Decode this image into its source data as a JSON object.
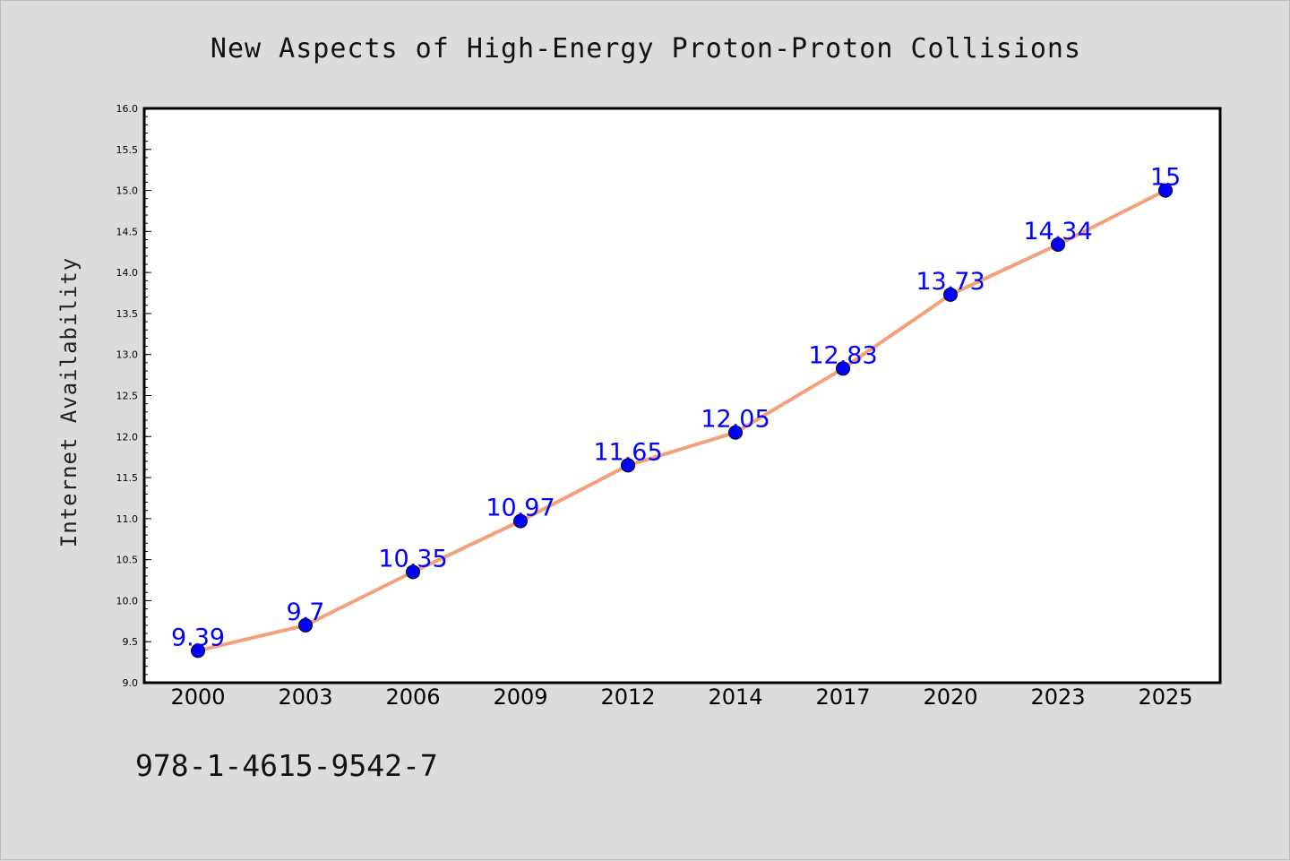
{
  "isbn": "978-1-4615-9542-7",
  "colors": {
    "background": "#dcdcdc",
    "plot_background": "#ffffff",
    "line": "#f4a07a",
    "marker": "#0000ff",
    "data_label": "#0000ff"
  },
  "chart_data": {
    "type": "line",
    "title": "New Aspects of High-Energy Proton-Proton Collisions",
    "xlabel": "",
    "ylabel": "Internet Availability",
    "categories": [
      "2000",
      "2003",
      "2006",
      "2009",
      "2012",
      "2014",
      "2017",
      "2020",
      "2023",
      "2025"
    ],
    "series": [
      {
        "values": [
          9.39,
          9.7,
          10.35,
          10.97,
          11.65,
          12.05,
          12.83,
          13.73,
          14.34,
          15
        ],
        "data_labels": [
          "9.39",
          "9.7",
          "10.35",
          "10.97",
          "11.65",
          "12.05",
          "12.83",
          "13.73",
          "14.34",
          "15"
        ]
      }
    ],
    "ylim": [
      9.0,
      16.0
    ],
    "yticks": [
      "9.0",
      "9.5",
      "10.0",
      "10.5",
      "11.0",
      "11.5",
      "12.0",
      "12.5",
      "13.0",
      "13.5",
      "14.0",
      "14.5",
      "15.0",
      "15.5",
      "16.0"
    ],
    "grid": false,
    "legend": "none"
  }
}
